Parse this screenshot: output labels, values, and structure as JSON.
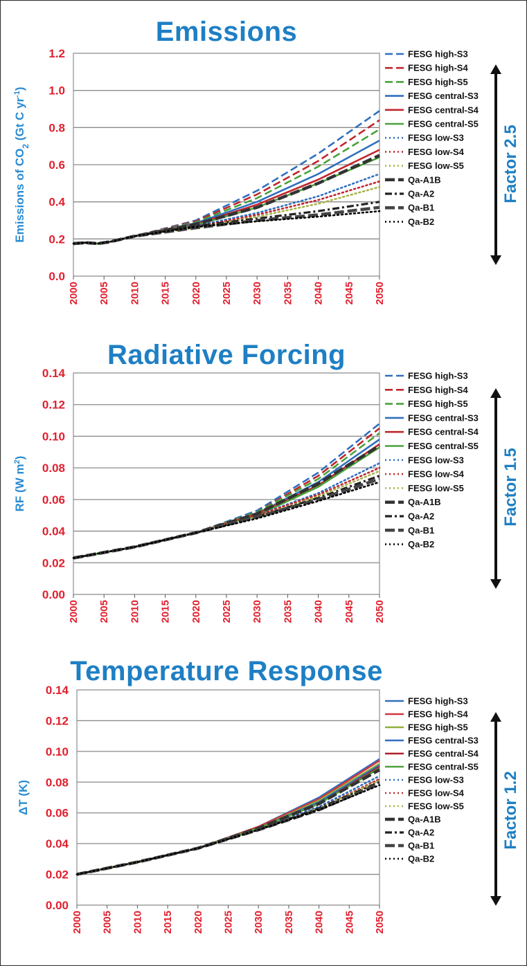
{
  "chart_data": [
    {
      "type": "line",
      "title": "Emissions",
      "ylabel": "Emissions of CO2 (Gt C yr-1)",
      "ylabel_parts": [
        "Emissions of CO",
        "2",
        " (Gt C yr",
        "-1",
        ")"
      ],
      "ylim": [
        0.0,
        1.2
      ],
      "yticks": [
        "0.0",
        "0.2",
        "0.4",
        "0.6",
        "0.8",
        "1.0",
        "1.2"
      ],
      "ytick_values": [
        0.0,
        0.2,
        0.4,
        0.6,
        0.8,
        1.0,
        1.2
      ],
      "xlim": [
        2000,
        2050
      ],
      "xticks": [
        "2000",
        "2005",
        "2010",
        "2015",
        "2020",
        "2025",
        "2030",
        "2035",
        "2040",
        "2045",
        "2050"
      ],
      "grid": true,
      "legend_position": "right",
      "factor_label": "Factor 2.5",
      "series": [
        {
          "name": "FESG high-S3",
          "style": "dash",
          "color": "#2f6fbf",
          "x": [
            2000,
            2002,
            2004,
            2006,
            2008,
            2010,
            2020,
            2030,
            2040,
            2050
          ],
          "y": [
            0.175,
            0.18,
            0.175,
            0.185,
            0.2,
            0.215,
            0.3,
            0.46,
            0.66,
            0.89
          ]
        },
        {
          "name": "FESG high-S4",
          "style": "dash",
          "color": "#c0262c",
          "x": [
            2000,
            2002,
            2004,
            2006,
            2008,
            2010,
            2020,
            2030,
            2040,
            2050
          ],
          "y": [
            0.175,
            0.18,
            0.175,
            0.185,
            0.2,
            0.215,
            0.295,
            0.44,
            0.62,
            0.84
          ]
        },
        {
          "name": "FESG high-S5",
          "style": "dash",
          "color": "#4aa23a",
          "x": [
            2000,
            2002,
            2004,
            2006,
            2008,
            2010,
            2020,
            2030,
            2040,
            2050
          ],
          "y": [
            0.175,
            0.18,
            0.175,
            0.185,
            0.2,
            0.215,
            0.29,
            0.42,
            0.59,
            0.79
          ]
        },
        {
          "name": "FESG central-S3",
          "style": "solid",
          "color": "#2f6fbf",
          "x": [
            2000,
            2002,
            2004,
            2006,
            2008,
            2010,
            2020,
            2030,
            2040,
            2050
          ],
          "y": [
            0.175,
            0.18,
            0.175,
            0.185,
            0.2,
            0.215,
            0.285,
            0.4,
            0.55,
            0.73
          ]
        },
        {
          "name": "FESG central-S4",
          "style": "solid",
          "color": "#c0262c",
          "x": [
            2000,
            2002,
            2004,
            2006,
            2008,
            2010,
            2020,
            2030,
            2040,
            2050
          ],
          "y": [
            0.175,
            0.18,
            0.175,
            0.185,
            0.2,
            0.215,
            0.28,
            0.385,
            0.52,
            0.68
          ]
        },
        {
          "name": "FESG central-S5",
          "style": "solid",
          "color": "#4aa23a",
          "x": [
            2000,
            2002,
            2004,
            2006,
            2008,
            2010,
            2020,
            2030,
            2040,
            2050
          ],
          "y": [
            0.175,
            0.18,
            0.175,
            0.185,
            0.2,
            0.215,
            0.275,
            0.37,
            0.5,
            0.64
          ]
        },
        {
          "name": "FESG low-S3",
          "style": "dot",
          "color": "#2f6fbf",
          "x": [
            2000,
            2002,
            2004,
            2006,
            2008,
            2010,
            2020,
            2030,
            2040,
            2050
          ],
          "y": [
            0.175,
            0.18,
            0.175,
            0.185,
            0.2,
            0.215,
            0.27,
            0.34,
            0.43,
            0.55
          ]
        },
        {
          "name": "FESG low-S4",
          "style": "dot",
          "color": "#c0262c",
          "x": [
            2000,
            2002,
            2004,
            2006,
            2008,
            2010,
            2020,
            2030,
            2040,
            2050
          ],
          "y": [
            0.175,
            0.18,
            0.175,
            0.185,
            0.2,
            0.215,
            0.265,
            0.33,
            0.41,
            0.51
          ]
        },
        {
          "name": "FESG low-S5",
          "style": "dot",
          "color": "#a8b24a",
          "x": [
            2000,
            2002,
            2004,
            2006,
            2008,
            2010,
            2020,
            2030,
            2040,
            2050
          ],
          "y": [
            0.175,
            0.18,
            0.175,
            0.185,
            0.2,
            0.215,
            0.26,
            0.32,
            0.39,
            0.48
          ]
        },
        {
          "name": "Qa-A1B",
          "style": "thick-dash",
          "color": "#333333",
          "x": [
            2000,
            2002,
            2004,
            2006,
            2008,
            2010,
            2020,
            2030,
            2040,
            2050
          ],
          "y": [
            0.175,
            0.18,
            0.175,
            0.185,
            0.2,
            0.215,
            0.28,
            0.37,
            0.5,
            0.65
          ]
        },
        {
          "name": "Qa-A2",
          "style": "dashdot",
          "color": "#222222",
          "x": [
            2000,
            2002,
            2004,
            2006,
            2008,
            2010,
            2020,
            2030,
            2040,
            2050
          ],
          "y": [
            0.175,
            0.18,
            0.175,
            0.185,
            0.2,
            0.215,
            0.27,
            0.31,
            0.35,
            0.4
          ]
        },
        {
          "name": "Qa-B1",
          "style": "thick-dash",
          "color": "#444444",
          "x": [
            2000,
            2002,
            2004,
            2006,
            2008,
            2010,
            2020,
            2030,
            2040,
            2050
          ],
          "y": [
            0.175,
            0.18,
            0.175,
            0.185,
            0.2,
            0.215,
            0.26,
            0.3,
            0.33,
            0.37
          ]
        },
        {
          "name": "Qa-B2",
          "style": "dot",
          "color": "#000000",
          "x": [
            2000,
            2002,
            2004,
            2006,
            2008,
            2010,
            2020,
            2030,
            2040,
            2050
          ],
          "y": [
            0.175,
            0.18,
            0.175,
            0.185,
            0.2,
            0.215,
            0.265,
            0.295,
            0.32,
            0.35
          ]
        }
      ]
    },
    {
      "type": "line",
      "title": "Radiative Forcing",
      "ylabel": "RF (W m-2)",
      "ylabel_parts": [
        "RF (W m",
        "2",
        ")"
      ],
      "ylim": [
        0.0,
        0.14
      ],
      "yticks": [
        "0.00",
        "0.02",
        "0.04",
        "0.06",
        "0.08",
        "0.10",
        "0.12",
        "0.14"
      ],
      "ytick_values": [
        0.0,
        0.02,
        0.04,
        0.06,
        0.08,
        0.1,
        0.12,
        0.14
      ],
      "xlim": [
        2000,
        2050
      ],
      "xticks": [
        "2000",
        "2005",
        "2010",
        "2015",
        "2020",
        "2025",
        "2030",
        "2035",
        "2040",
        "2045",
        "2050"
      ],
      "grid": true,
      "legend_position": "right",
      "factor_label": "Factor 1.5",
      "series": [
        {
          "name": "FESG high-S3",
          "style": "dash",
          "color": "#2f6fbf",
          "x": [
            2000,
            2010,
            2020,
            2030,
            2040,
            2050
          ],
          "y": [
            0.023,
            0.03,
            0.039,
            0.053,
            0.077,
            0.108
          ]
        },
        {
          "name": "FESG high-S4",
          "style": "dash",
          "color": "#c0262c",
          "x": [
            2000,
            2010,
            2020,
            2030,
            2040,
            2050
          ],
          "y": [
            0.023,
            0.03,
            0.039,
            0.052,
            0.075,
            0.105
          ]
        },
        {
          "name": "FESG high-S5",
          "style": "dash",
          "color": "#4aa23a",
          "x": [
            2000,
            2010,
            2020,
            2030,
            2040,
            2050
          ],
          "y": [
            0.023,
            0.03,
            0.039,
            0.052,
            0.073,
            0.102
          ]
        },
        {
          "name": "FESG central-S3",
          "style": "solid",
          "color": "#2f6fbf",
          "x": [
            2000,
            2010,
            2020,
            2030,
            2040,
            2050
          ],
          "y": [
            0.023,
            0.03,
            0.039,
            0.051,
            0.071,
            0.098
          ]
        },
        {
          "name": "FESG central-S4",
          "style": "solid",
          "color": "#c0262c",
          "x": [
            2000,
            2010,
            2020,
            2030,
            2040,
            2050
          ],
          "y": [
            0.023,
            0.03,
            0.039,
            0.051,
            0.069,
            0.095
          ]
        },
        {
          "name": "FESG central-S5",
          "style": "solid",
          "color": "#4aa23a",
          "x": [
            2000,
            2010,
            2020,
            2030,
            2040,
            2050
          ],
          "y": [
            0.023,
            0.03,
            0.039,
            0.05,
            0.068,
            0.093
          ]
        },
        {
          "name": "FESG low-S3",
          "style": "dot",
          "color": "#2f6fbf",
          "x": [
            2000,
            2010,
            2020,
            2030,
            2040,
            2050
          ],
          "y": [
            0.023,
            0.03,
            0.039,
            0.05,
            0.064,
            0.083
          ]
        },
        {
          "name": "FESG low-S4",
          "style": "dot",
          "color": "#c0262c",
          "x": [
            2000,
            2010,
            2020,
            2030,
            2040,
            2050
          ],
          "y": [
            0.023,
            0.03,
            0.039,
            0.05,
            0.063,
            0.08
          ]
        },
        {
          "name": "FESG low-S5",
          "style": "dot",
          "color": "#a8b24a",
          "x": [
            2000,
            2010,
            2020,
            2030,
            2040,
            2050
          ],
          "y": [
            0.023,
            0.03,
            0.039,
            0.049,
            0.062,
            0.078
          ]
        },
        {
          "name": "Qa-A1B",
          "style": "thick-dash",
          "color": "#333333",
          "x": [
            2000,
            2010,
            2020,
            2030,
            2040,
            2050
          ],
          "y": [
            0.023,
            0.03,
            0.039,
            0.051,
            0.07,
            0.094
          ]
        },
        {
          "name": "Qa-A2",
          "style": "dashdot",
          "color": "#222222",
          "x": [
            2000,
            2010,
            2020,
            2030,
            2040,
            2050
          ],
          "y": [
            0.023,
            0.03,
            0.039,
            0.049,
            0.061,
            0.075
          ]
        },
        {
          "name": "Qa-B1",
          "style": "thick-dash",
          "color": "#444444",
          "x": [
            2000,
            2010,
            2020,
            2030,
            2040,
            2050
          ],
          "y": [
            0.023,
            0.03,
            0.039,
            0.049,
            0.06,
            0.073
          ]
        },
        {
          "name": "Qa-B2",
          "style": "dot",
          "color": "#000000",
          "x": [
            2000,
            2010,
            2020,
            2030,
            2040,
            2050
          ],
          "y": [
            0.023,
            0.03,
            0.039,
            0.048,
            0.059,
            0.071
          ]
        }
      ]
    },
    {
      "type": "line",
      "title": "Temperature Response",
      "ylabel": "ΔT (K)",
      "ylabel_parts": [
        "ΔT (K)"
      ],
      "ylim": [
        0.0,
        0.14
      ],
      "yticks": [
        "0.00",
        "0.02",
        "0.04",
        "0.06",
        "0.08",
        "0.10",
        "0.12",
        "0.14"
      ],
      "ytick_values": [
        0.0,
        0.02,
        0.04,
        0.06,
        0.08,
        0.1,
        0.12,
        0.14
      ],
      "xlim": [
        2000,
        2050
      ],
      "xticks": [
        "2000",
        "2005",
        "2010",
        "2015",
        "2020",
        "2025",
        "2030",
        "2035",
        "2040",
        "2045",
        "2050"
      ],
      "grid": true,
      "legend_position": "right",
      "factor_label": "Factor 1.2",
      "series": [
        {
          "name": "FESG high-S3",
          "style": "solid",
          "color": "#2f6fbf",
          "x": [
            2000,
            2010,
            2020,
            2030,
            2040,
            2050
          ],
          "y": [
            0.02,
            0.028,
            0.037,
            0.051,
            0.07,
            0.095
          ]
        },
        {
          "name": "FESG high-S4",
          "style": "solid",
          "color": "#d0363c",
          "x": [
            2000,
            2010,
            2020,
            2030,
            2040,
            2050
          ],
          "y": [
            0.02,
            0.028,
            0.037,
            0.051,
            0.069,
            0.094
          ]
        },
        {
          "name": "FESG high-S5",
          "style": "solid",
          "color": "#8fb13a",
          "x": [
            2000,
            2010,
            2020,
            2030,
            2040,
            2050
          ],
          "y": [
            0.02,
            0.028,
            0.037,
            0.05,
            0.068,
            0.092
          ]
        },
        {
          "name": "FESG central-S3",
          "style": "solid",
          "color": "#2f6fbf",
          "x": [
            2000,
            2010,
            2020,
            2030,
            2040,
            2050
          ],
          "y": [
            0.02,
            0.028,
            0.037,
            0.05,
            0.067,
            0.091
          ]
        },
        {
          "name": "FESG central-S4",
          "style": "solid",
          "color": "#b02028",
          "x": [
            2000,
            2010,
            2020,
            2030,
            2040,
            2050
          ],
          "y": [
            0.02,
            0.028,
            0.037,
            0.05,
            0.066,
            0.09
          ]
        },
        {
          "name": "FESG central-S5",
          "style": "solid",
          "color": "#4aa23a",
          "x": [
            2000,
            2010,
            2020,
            2030,
            2040,
            2050
          ],
          "y": [
            0.02,
            0.028,
            0.037,
            0.05,
            0.066,
            0.089
          ]
        },
        {
          "name": "FESG low-S3",
          "style": "dot",
          "color": "#2f6fbf",
          "x": [
            2000,
            2010,
            2020,
            2030,
            2040,
            2050
          ],
          "y": [
            0.02,
            0.028,
            0.037,
            0.049,
            0.064,
            0.084
          ]
        },
        {
          "name": "FESG low-S4",
          "style": "dot",
          "color": "#c0262c",
          "x": [
            2000,
            2010,
            2020,
            2030,
            2040,
            2050
          ],
          "y": [
            0.02,
            0.028,
            0.037,
            0.049,
            0.063,
            0.082
          ]
        },
        {
          "name": "FESG low-S5",
          "style": "dot",
          "color": "#a8b24a",
          "x": [
            2000,
            2010,
            2020,
            2030,
            2040,
            2050
          ],
          "y": [
            0.02,
            0.028,
            0.037,
            0.049,
            0.063,
            0.081
          ]
        },
        {
          "name": "Qa-A1B",
          "style": "thick-dash",
          "color": "#333333",
          "x": [
            2000,
            2010,
            2020,
            2030,
            2040,
            2050
          ],
          "y": [
            0.02,
            0.028,
            0.037,
            0.05,
            0.066,
            0.088
          ]
        },
        {
          "name": "Qa-A2",
          "style": "dashdot",
          "color": "#222222",
          "x": [
            2000,
            2010,
            2020,
            2030,
            2040,
            2050
          ],
          "y": [
            0.02,
            0.028,
            0.037,
            0.049,
            0.063,
            0.08
          ]
        },
        {
          "name": "Qa-B1",
          "style": "thick-dash",
          "color": "#444444",
          "x": [
            2000,
            2010,
            2020,
            2030,
            2040,
            2050
          ],
          "y": [
            0.02,
            0.028,
            0.037,
            0.049,
            0.062,
            0.079
          ]
        },
        {
          "name": "Qa-B2",
          "style": "dot",
          "color": "#000000",
          "x": [
            2000,
            2010,
            2020,
            2030,
            2040,
            2050
          ],
          "y": [
            0.02,
            0.028,
            0.037,
            0.049,
            0.062,
            0.078
          ]
        }
      ]
    }
  ],
  "colors": {
    "title": "#1e7fc4",
    "tick_labels": "#e0202e",
    "axis_label": "#2a8bd2",
    "factor_text": "#1e7fc4",
    "grid": "#8a8a8a"
  }
}
